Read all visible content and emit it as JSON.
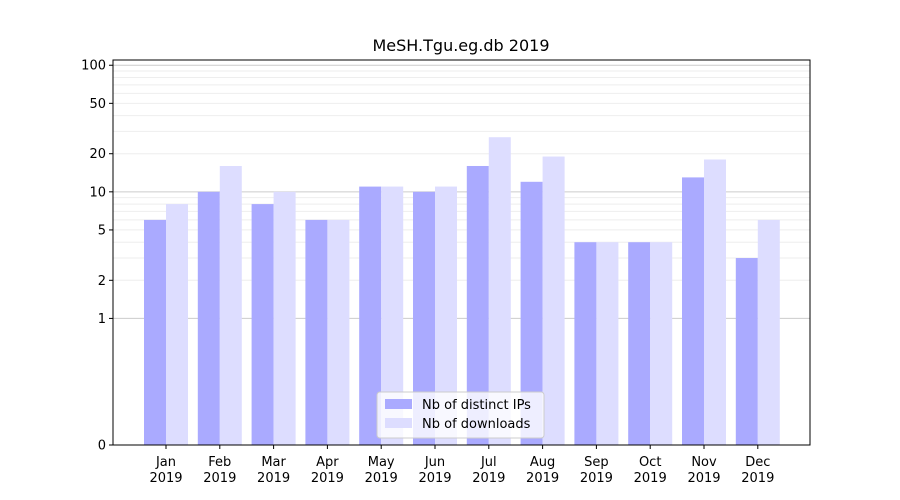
{
  "chart_data": {
    "type": "bar",
    "title": "MeSH.Tgu.eg.db 2019",
    "xlabel": "",
    "ylabel": "",
    "yscale": "symlog",
    "ylim": [
      0,
      110
    ],
    "yticks": [
      0,
      1,
      2,
      5,
      10,
      20,
      50,
      100
    ],
    "grid": true,
    "legend_position": "bottom-center",
    "categories": [
      [
        "Jan",
        "2019"
      ],
      [
        "Feb",
        "2019"
      ],
      [
        "Mar",
        "2019"
      ],
      [
        "Apr",
        "2019"
      ],
      [
        "May",
        "2019"
      ],
      [
        "Jun",
        "2019"
      ],
      [
        "Jul",
        "2019"
      ],
      [
        "Aug",
        "2019"
      ],
      [
        "Sep",
        "2019"
      ],
      [
        "Oct",
        "2019"
      ],
      [
        "Nov",
        "2019"
      ],
      [
        "Dec",
        "2019"
      ]
    ],
    "series": [
      {
        "name": "Nb of distinct IPs",
        "color": "#aaaaff",
        "values": [
          6,
          10,
          8,
          6,
          11,
          10,
          16,
          12,
          4,
          4,
          13,
          3
        ]
      },
      {
        "name": "Nb of downloads",
        "color": "#ddddff",
        "values": [
          8,
          16,
          10,
          6,
          11,
          11,
          27,
          19,
          4,
          4,
          18,
          6
        ]
      }
    ]
  }
}
